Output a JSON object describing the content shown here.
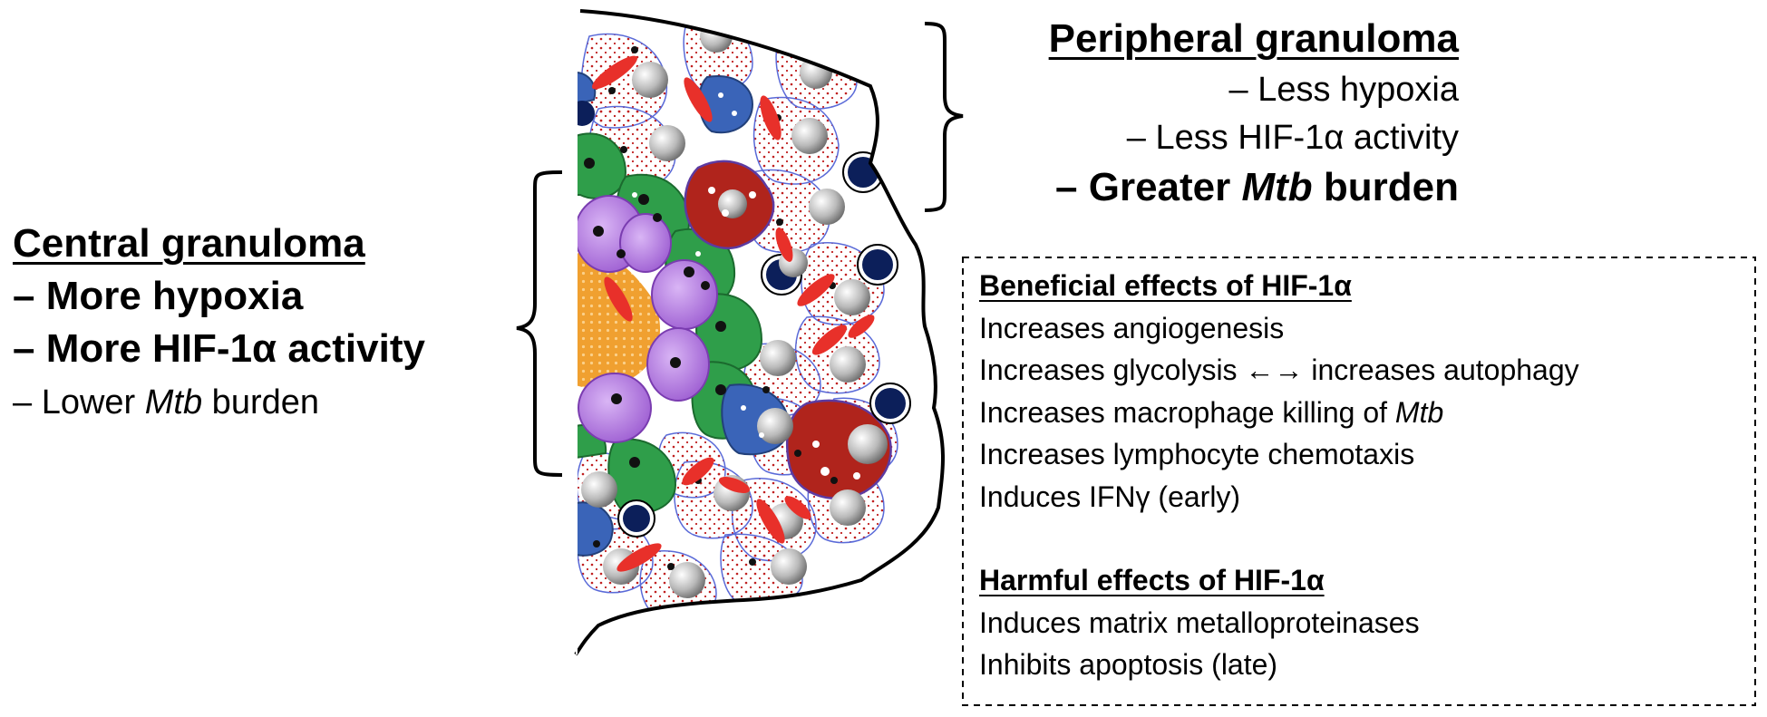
{
  "central": {
    "title": "Central granuloma",
    "items": [
      {
        "dash": "– ",
        "pre": "More hypoxia",
        "em": "",
        "post": ""
      },
      {
        "dash": "– ",
        "pre": "More HIF-1α activity",
        "em": "",
        "post": ""
      },
      {
        "dash": "– ",
        "pre": "Lower ",
        "em": "Mtb",
        "post": " burden"
      }
    ]
  },
  "peripheral": {
    "title": "Peripheral granuloma",
    "items": [
      {
        "dash": "– ",
        "pre": "Less hypoxia",
        "em": "",
        "post": ""
      },
      {
        "dash": "– ",
        "pre": "Less HIF-1α activity",
        "em": "",
        "post": ""
      },
      {
        "dash": "– ",
        "pre": "Greater ",
        "em": "Mtb",
        "post": " burden"
      }
    ]
  },
  "effects": {
    "beneficial_title": "Beneficial effects of HIF-1α",
    "beneficial": [
      {
        "pre": "Increases angiogenesis",
        "em": "",
        "post": ""
      },
      {
        "pre": "Increases glycolysis ",
        "em": "",
        "post": "",
        "arrow": "←→",
        "tail": " increases autophagy"
      },
      {
        "pre": "Increases macrophage killing of ",
        "em": "Mtb",
        "post": ""
      },
      {
        "pre": "Increases lymphocyte chemotaxis",
        "em": "",
        "post": ""
      },
      {
        "pre": "Induces IFNγ (early)",
        "em": "",
        "post": ""
      }
    ],
    "harmful_title": "Harmful effects of HIF-1α",
    "harmful": [
      {
        "pre": "Induces matrix metalloproteinases",
        "em": "",
        "post": ""
      },
      {
        "pre": "Inhibits apoptosis (late)",
        "em": "",
        "post": ""
      }
    ]
  },
  "colors": {
    "necrotic_core": "#f0a030",
    "neutrophil": "#a66ad6",
    "green_cell": "#2f9e4a",
    "red_cell": "#b0241c",
    "blue_cell": "#3a64b8",
    "lymphocyte": "#0c1f5a",
    "rbc": "#e8302a"
  }
}
